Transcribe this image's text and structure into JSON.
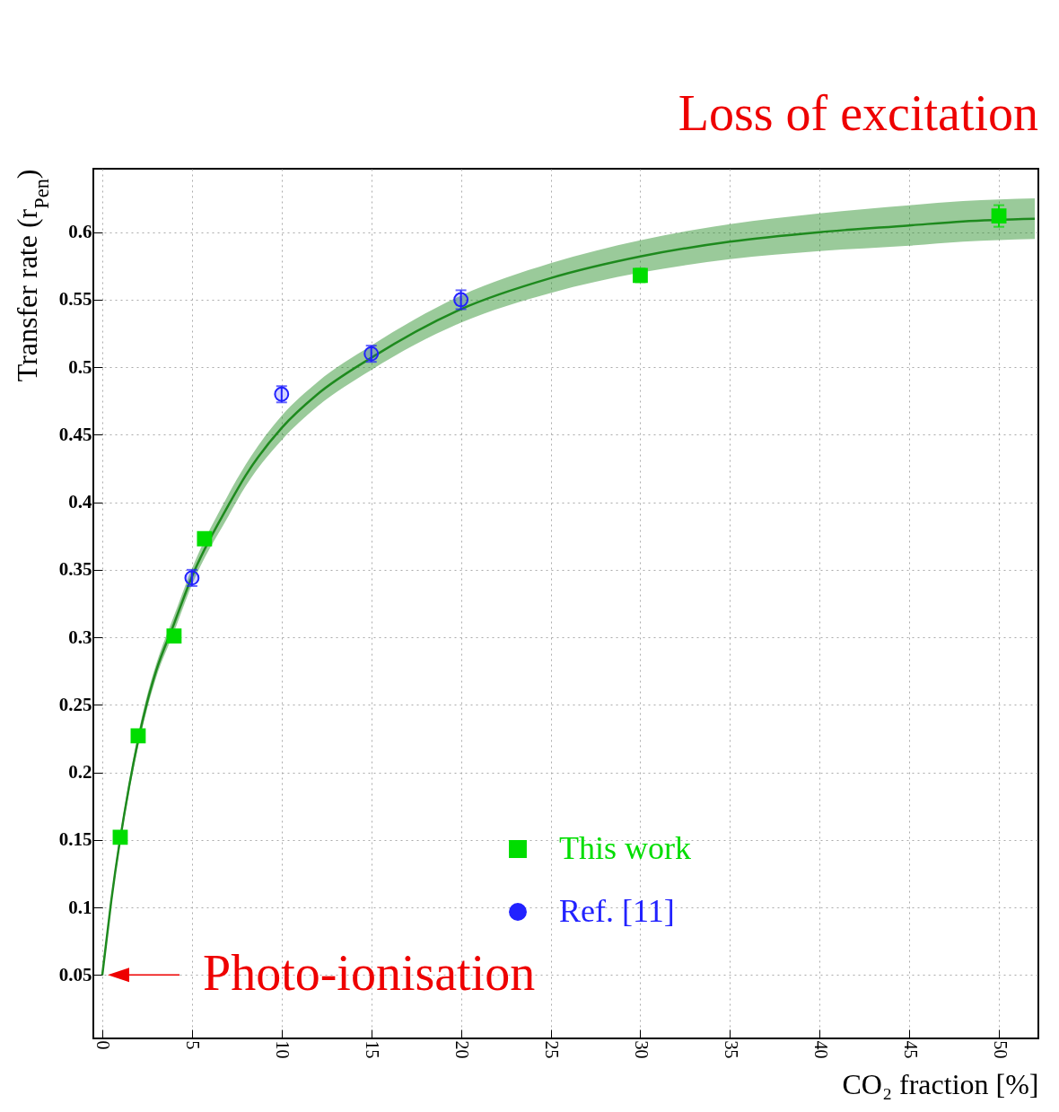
{
  "chart_data": {
    "type": "scatter",
    "xlabel": "CO₂ fraction [%]",
    "ylabel": "Transfer rate (r$_{Pen}$)",
    "xlim": [
      -0.5,
      52.2
    ],
    "ylim": [
      0.003,
      0.647
    ],
    "xticks": [
      0,
      5,
      10,
      15,
      20,
      25,
      30,
      35,
      40,
      45,
      50
    ],
    "yticks": [
      0.05,
      0.1,
      0.15,
      0.2,
      0.25,
      0.3,
      0.35,
      0.4,
      0.45,
      0.5,
      0.55,
      0.6
    ],
    "grid": true,
    "legend": "bottom right",
    "series": [
      {
        "name": "This work",
        "marker": "square",
        "color": "#00dd00",
        "x": [
          1,
          2,
          4,
          5.7,
          30,
          50
        ],
        "values": [
          0.152,
          0.227,
          0.301,
          0.373,
          0.568,
          0.612
        ],
        "errors": [
          0.003,
          0.003,
          0.003,
          0.004,
          0.005,
          0.008
        ]
      },
      {
        "name": "Ref. [11]",
        "marker": "circle",
        "color": "#2222ff",
        "x": [
          5,
          10,
          15,
          20
        ],
        "values": [
          0.344,
          0.48,
          0.51,
          0.55
        ],
        "errors": [
          0.006,
          0.006,
          0.006,
          0.007
        ]
      },
      {
        "type": "line",
        "color": "#1e8a1e",
        "x": [
          0,
          0.5,
          1.5,
          2.5,
          3,
          4,
          5,
          7,
          8,
          10,
          12,
          15,
          20,
          25,
          30,
          35,
          40,
          45,
          48,
          52
        ],
        "values": [
          0.05,
          0.105,
          0.19,
          0.252,
          0.275,
          0.31,
          0.345,
          0.397,
          0.42,
          0.455,
          0.48,
          0.507,
          0.543,
          0.566,
          0.582,
          0.593,
          0.6,
          0.605,
          0.608,
          0.61
        ],
        "lower": [
          0.048,
          0.102,
          0.186,
          0.247,
          0.27,
          0.304,
          0.339,
          0.389,
          0.412,
          0.446,
          0.471,
          0.498,
          0.533,
          0.555,
          0.57,
          0.58,
          0.586,
          0.59,
          0.593,
          0.595
        ],
        "upper": [
          0.052,
          0.108,
          0.194,
          0.257,
          0.28,
          0.316,
          0.351,
          0.405,
          0.428,
          0.464,
          0.489,
          0.516,
          0.553,
          0.577,
          0.594,
          0.606,
          0.614,
          0.62,
          0.623,
          0.625
        ]
      }
    ],
    "annotations": [
      "Loss of excitation",
      {
        "text": "Photo-ionisation",
        "x": 0,
        "y": 0.05
      }
    ]
  }
}
